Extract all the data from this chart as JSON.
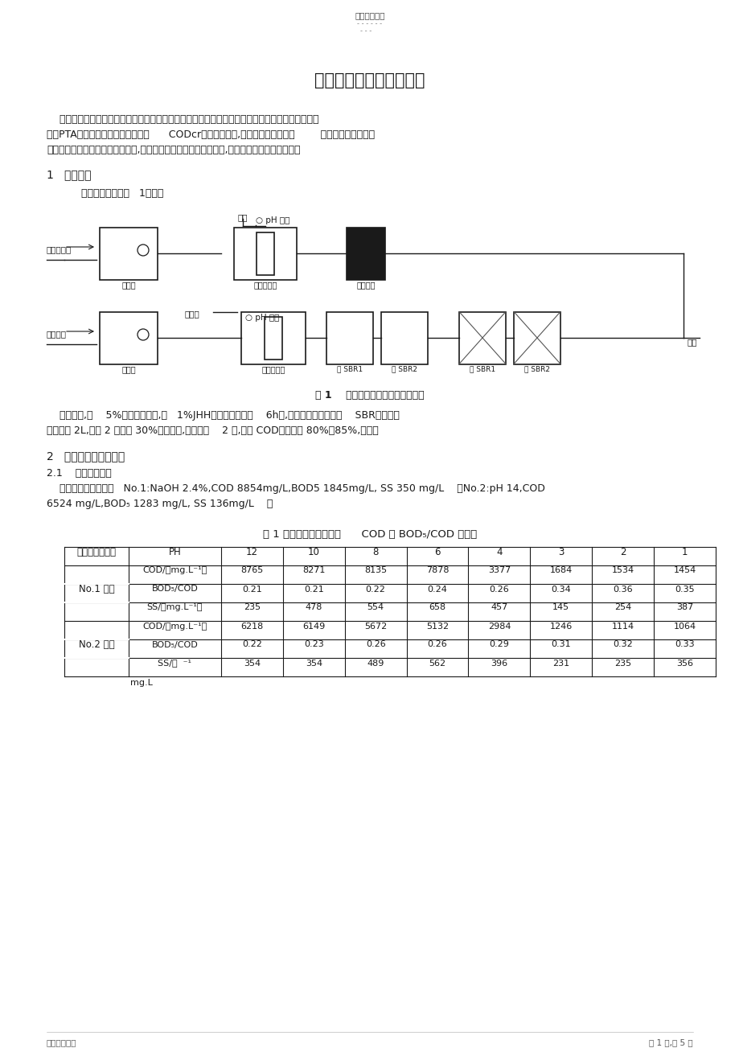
{
  "title": "碱减量废水处理技术争论",
  "header_text": "精选学习资料",
  "header_dots1": "- - - - - -",
  "header_dots2": "- - -",
  "para1_lines": [
    "    化纤印染厂生产排放印花染色废水和碱减量生产废水；涤纶仿真丝纤维在高温、高碱度条件下被减",
    "量，PTA溶入碱液中；碱减量废水中      CODcr和碱含量极高,给废水处理增加难度        ；本文提出一种应用",
    "工业废料的碱减量废水处理新技术,试验争论说明有效、牟量、廉价,适合印染碱减量废水处理；"
  ],
  "section1": "1   试验工艺",
  "section1_sub": "    试验工艺流程如图   1所示；",
  "fig_caption": "图 1    碱减量废水处理实验工艺流程",
  "para2_lines": [
    "    取镀铁屑,用    5%盐酸浸泡清洗,加   1%JHH活化剂溶液浸泡    6h后,装入微电解柱待用；    SBR槽各投加",
    "活性污泥 2L,其中 2 槽悬挂 30%软性填料,污泥驯化    2 周,周期 COD去除率约 80%～85%,待用；"
  ],
  "section2": "2   静态试验结果和争论",
  "section2_1": "2.1    酸析静态试验",
  "para3_lines": [
    "    水质：碱减量废水，   No.1:NaOH 2.4%,COD 8854mg/L,BOD5 1845mg/L, SS 350 mg/L    ；No.2:pH 14,COD",
    "6524 mg/L,BOD₅ 1283 mg/L, SS 136mg/L    ；"
  ],
  "table_title_left": "表 1 碱减量废水酸析点对",
  "table_title_bold": "      COD 和 BOD₅/COD",
  "table_title_right": "的影响",
  "table_col0_header": "碱减量废水试验",
  "table_col1_header": "PH",
  "table_ph_values": [
    "12",
    "10",
    "8",
    "6",
    "4",
    "3",
    "2",
    "1"
  ],
  "table_data": [
    [
      "COD/（mg.L⁻¹）",
      "8765",
      "8271",
      "8135",
      "7878",
      "3377",
      "1684",
      "1534",
      "1454"
    ],
    [
      "BOD₅/COD",
      "0.21",
      "0.21",
      "0.22",
      "0.24",
      "0.26",
      "0.34",
      "0.36",
      "0.35"
    ],
    [
      "SS/（mg.L⁻¹）",
      "235",
      "478",
      "554",
      "658",
      "457",
      "145",
      "254",
      "387"
    ],
    [
      "COD/（mg.L⁻¹）",
      "6218",
      "6149",
      "5672",
      "5132",
      "2984",
      "1246",
      "1114",
      "1064"
    ],
    [
      "BOD₅/COD",
      "0.22",
      "0.23",
      "0.26",
      "0.26",
      "0.29",
      "0.31",
      "0.32",
      "0.33"
    ],
    [
      "SS/（  ⁻¹",
      "354",
      "354",
      "489",
      "562",
      "396",
      "231",
      "235",
      "356"
    ]
  ],
  "table_group_labels": [
    "No.1 废水",
    "No.2 废水"
  ],
  "table_last_row_sub": "mg.L",
  "footer_left": "名称归纳总结",
  "footer_right": "第 1 页,共 5 页",
  "bg_color": "#ffffff",
  "text_color": "#1a1a1a"
}
